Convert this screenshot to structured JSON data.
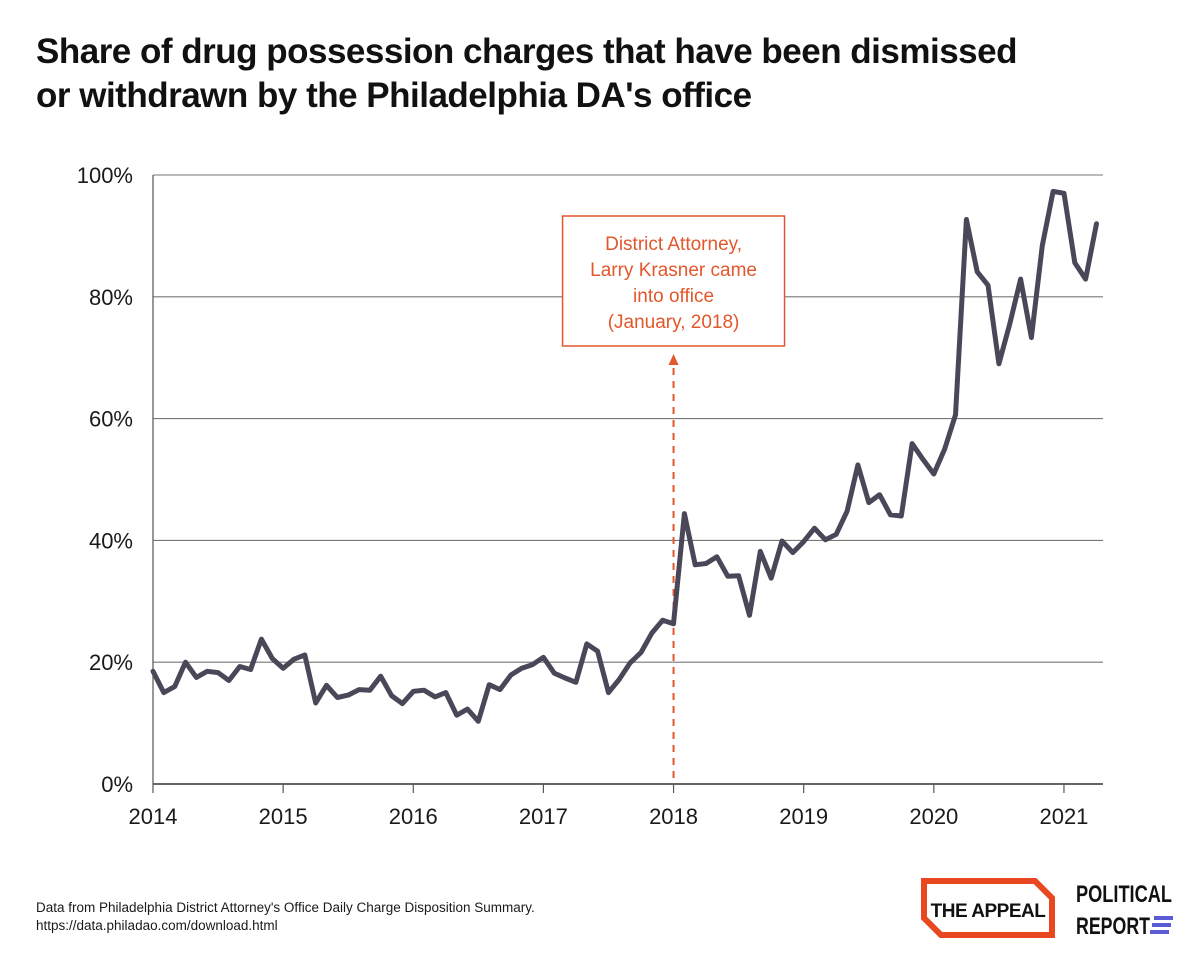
{
  "title_line1": "Share of drug possession charges that have been dismissed",
  "title_line2": "or withdrawn by the Philadelphia DA's office",
  "annotation": {
    "lines": [
      "District Attorney,",
      "Larry Krasner came",
      "into office",
      "(January, 2018)"
    ],
    "color": "#e2572b",
    "x": 2018.0
  },
  "source_line1": "Data from Philadelphia District Attorney's Office Daily Charge Disposition Summary.",
  "source_line2": "https://data.philadao.com/download.html",
  "logos": {
    "appeal": "THE APPEAL",
    "political_report_line1": "POLITICAL",
    "political_report_line2": "REPORT",
    "appeal_color": "#e8471f"
  },
  "chart_data": {
    "type": "line",
    "x_start": "2014-01",
    "x_step": "monthly",
    "xlim": [
      2014.0,
      2021.3
    ],
    "ylim": [
      0,
      100
    ],
    "y_ticks": [
      "0%",
      "20%",
      "40%",
      "60%",
      "80%",
      "100%"
    ],
    "x_ticks": [
      "2014",
      "2015",
      "2016",
      "2017",
      "2018",
      "2019",
      "2020",
      "2021"
    ],
    "grid": true,
    "line_color": "#4a4858",
    "values": [
      18.5,
      15.0,
      16.0,
      20.0,
      17.5,
      18.5,
      18.3,
      17.0,
      19.3,
      18.8,
      23.8,
      20.6,
      19.0,
      20.5,
      21.2,
      13.3,
      16.2,
      14.2,
      14.6,
      15.5,
      15.4,
      17.7,
      14.5,
      13.2,
      15.2,
      15.4,
      14.3,
      15.0,
      11.3,
      12.3,
      10.3,
      16.3,
      15.5,
      17.9,
      19.0,
      19.6,
      20.8,
      18.2,
      17.4,
      16.7,
      23.0,
      21.8,
      15.0,
      17.2,
      19.9,
      21.6,
      24.8,
      26.9,
      26.3,
      44.4,
      36.0,
      36.2,
      37.3,
      34.1,
      34.2,
      27.7,
      38.2,
      33.8,
      39.9,
      38.0,
      39.8,
      42.0,
      40.1,
      41.0,
      44.8,
      52.4,
      46.2,
      47.5,
      44.2,
      44.0,
      55.9,
      53.3,
      50.9,
      55.0,
      60.6,
      92.7,
      84.1,
      81.9,
      69.0,
      75.5,
      82.9,
      73.3,
      88.4,
      97.3,
      97.0,
      85.6,
      82.9,
      92.0
    ]
  }
}
